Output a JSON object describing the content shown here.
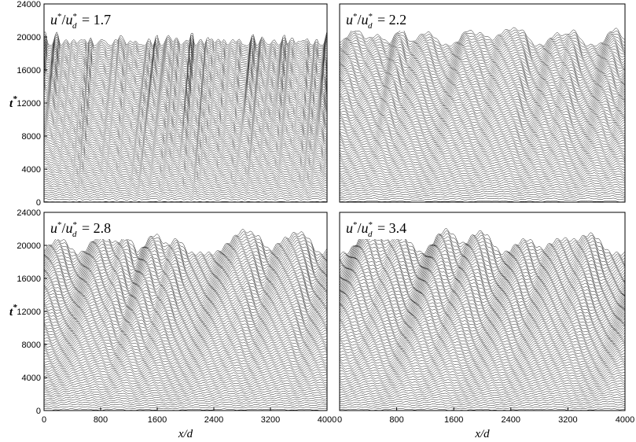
{
  "chart_data": [
    {
      "type": "line",
      "panel": "top-left",
      "annotation": {
        "ratio_label": "u*/u*_d",
        "value": "1.7"
      },
      "xlim": [
        0,
        4000
      ],
      "ylim": [
        0,
        24000
      ],
      "yticks": [
        0,
        4000,
        8000,
        12000,
        16000,
        20000,
        24000
      ],
      "xticks": [],
      "ylabel": "t*",
      "xlabel": "",
      "profiles": {
        "t_start": 0,
        "t_end": 19000,
        "count": 80
      },
      "ripples": {
        "count": 44,
        "amplitude": 900,
        "growth": "weak",
        "migration_speed": 0.05
      }
    },
    {
      "type": "line",
      "panel": "top-right",
      "annotation": {
        "ratio_label": "u*/u*_d",
        "value": "2.2"
      },
      "xlim": [
        0,
        4000
      ],
      "ylim": [
        0,
        24000
      ],
      "yticks": [],
      "xticks": [],
      "ylabel": "",
      "xlabel": "",
      "profiles": {
        "t_start": 0,
        "t_end": 19000,
        "count": 80
      },
      "ripples": {
        "count": 11,
        "amplitude": 2000,
        "growth": "moderate",
        "migration_speed": 0.09
      }
    },
    {
      "type": "line",
      "panel": "bottom-left",
      "annotation": {
        "ratio_label": "u*/u*_d",
        "value": "2.8"
      },
      "xlim": [
        0,
        4000
      ],
      "ylim": [
        0,
        24000
      ],
      "yticks": [
        0,
        4000,
        8000,
        12000,
        16000,
        20000,
        24000
      ],
      "xticks": [
        0,
        800,
        1600,
        2400,
        3200,
        4000
      ],
      "ylabel": "t*",
      "xlabel": "x/d",
      "profiles": {
        "t_start": 0,
        "t_end": 19000,
        "count": 80
      },
      "ripples": {
        "count": 9,
        "amplitude": 2800,
        "growth": "strong",
        "migration_speed": 0.12
      }
    },
    {
      "type": "line",
      "panel": "bottom-right",
      "annotation": {
        "ratio_label": "u*/u*_d",
        "value": "3.4"
      },
      "xlim": [
        0,
        4000
      ],
      "ylim": [
        0,
        24000
      ],
      "yticks": [],
      "xticks": [
        0,
        800,
        1600,
        2400,
        3200,
        4000
      ],
      "ylabel": "",
      "xlabel": "x/d",
      "profiles": {
        "t_start": 0,
        "t_end": 19000,
        "count": 80
      },
      "ripples": {
        "count": 7,
        "amplitude": 3000,
        "growth": "strong",
        "migration_speed": 0.14
      }
    }
  ],
  "colors": {
    "lines": "#1a1a1a",
    "frame": "#000000",
    "background": "#ffffff"
  }
}
